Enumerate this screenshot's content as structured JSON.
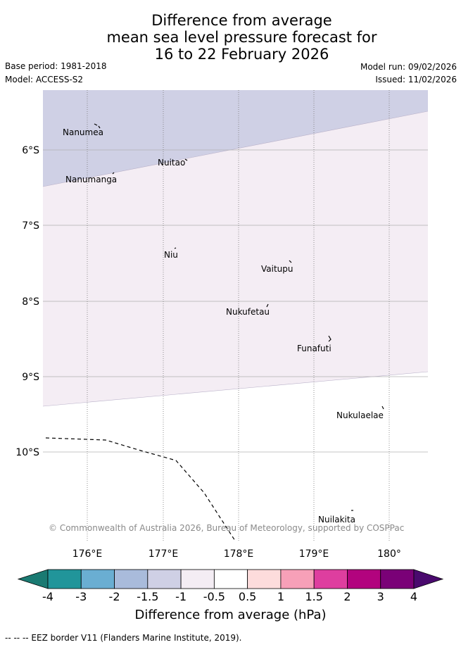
{
  "title": {
    "line1": "Difference from average",
    "line2": "mean sea level pressure forecast for",
    "line3": "16 to 22 February 2026"
  },
  "meta": {
    "base_period": "Base period: 1981-2018",
    "model": "Model: ACCESS-S2",
    "model_run": "Model run: 09/02/2026",
    "issued": "Issued: 11/02/2026"
  },
  "map": {
    "lat_labels": [
      "6°S",
      "7°S",
      "8°S",
      "9°S",
      "10°S"
    ],
    "lon_labels": [
      "176°E",
      "177°E",
      "178°E",
      "179°E",
      "180°"
    ],
    "places": [
      {
        "name": "Nanumea"
      },
      {
        "name": "Nuitao"
      },
      {
        "name": "Nanumanga"
      },
      {
        "name": "Niu"
      },
      {
        "name": "Vaitupu"
      },
      {
        "name": "Nukufetau"
      },
      {
        "name": "Funafuti"
      },
      {
        "name": "Nukulaelae"
      },
      {
        "name": "Nuilakita"
      }
    ],
    "copyright": "© Commonwealth of Australia 2026, Bureau of Meteorology, supported by COSPPac"
  },
  "colorbar": {
    "ticks": [
      "-4",
      "-3",
      "-2",
      "-1.5",
      "-1",
      "-0.5",
      "0.5",
      "1",
      "1.5",
      "2",
      "3",
      "4"
    ],
    "colors": [
      "#1a7a72",
      "#21959a",
      "#6aaed2",
      "#a9bbdb",
      "#cfd0e5",
      "#f4edf4",
      "#ffffff",
      "#fddcdc",
      "#f7a0b8",
      "#de3e9f",
      "#b2037e",
      "#7a0177",
      "#4a0a6e"
    ],
    "label": "Difference from average (hPa)"
  },
  "footer": "-- -- -- EEZ border V11 (Flanders Marine Institute, 2019)."
}
